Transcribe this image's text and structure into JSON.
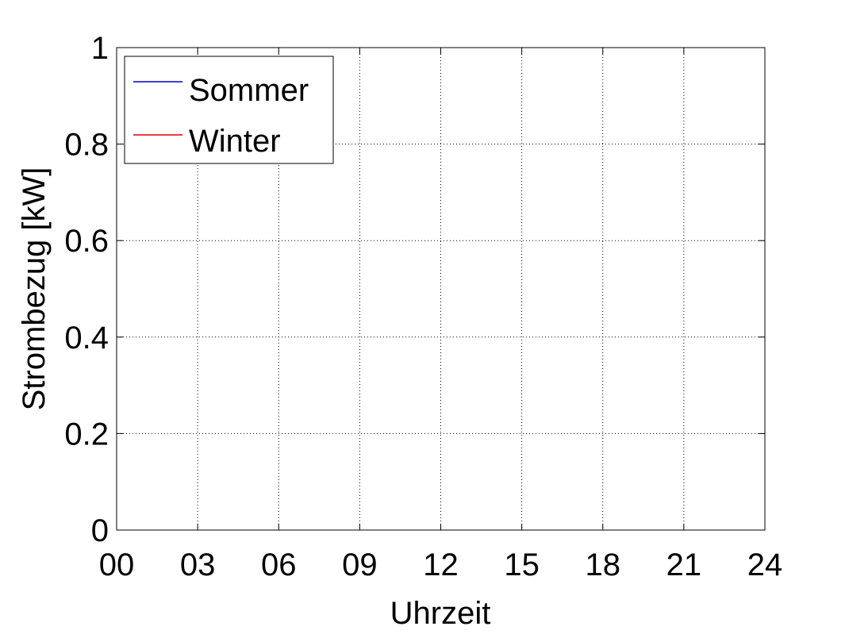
{
  "chart_data": {
    "type": "line",
    "title": "",
    "xlabel": "Uhrzeit",
    "ylabel": "Strombezug [kW]",
    "xlim": [
      0,
      24
    ],
    "ylim": [
      0,
      1
    ],
    "x_ticks": [
      "00",
      "03",
      "06",
      "09",
      "12",
      "15",
      "18",
      "21",
      "24"
    ],
    "y_ticks": [
      "0",
      "0.2",
      "0.4",
      "0.6",
      "0.8",
      "1"
    ],
    "grid": true,
    "legend_position": "top-left",
    "series": [
      {
        "name": "Sommer",
        "color": "#0000cc",
        "x": [],
        "y": []
      },
      {
        "name": "Winter",
        "color": "#e00000",
        "x": [],
        "y": []
      }
    ]
  }
}
